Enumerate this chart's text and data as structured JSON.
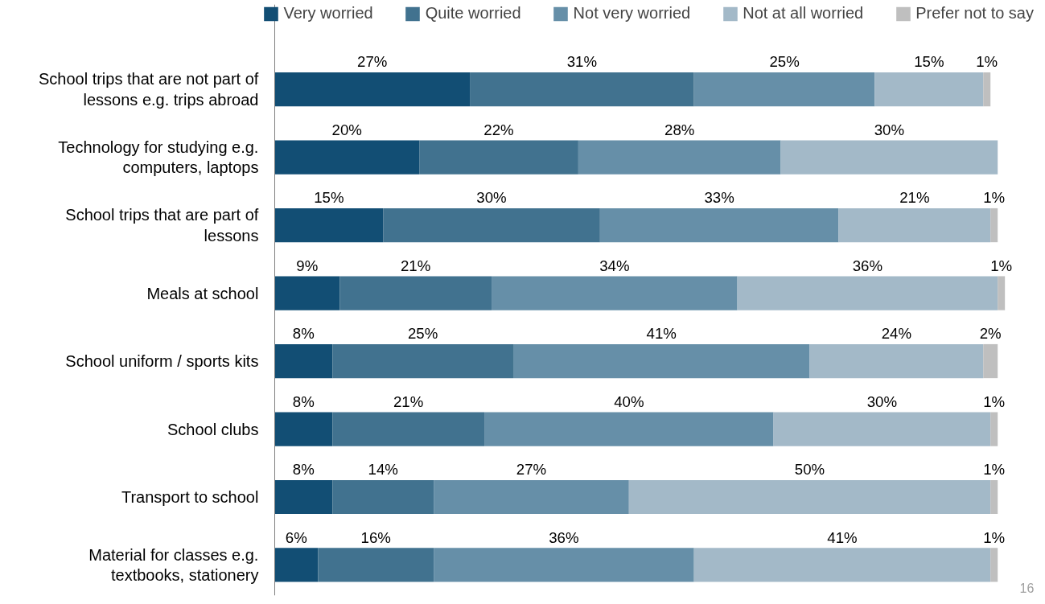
{
  "chart_data": {
    "type": "bar",
    "orientation": "horizontal",
    "stacked": true,
    "legend": "top",
    "grid": false,
    "categories": [
      "School trips that are not part of lessons e.g. trips abroad",
      "Technology for studying e.g. computers, laptops",
      "School trips that are part of lessons",
      "Meals at school",
      "School uniform / sports kits",
      "School clubs",
      "Transport to school",
      "Material for classes e.g. textbooks, stationery"
    ],
    "series": [
      {
        "name": "Very worried",
        "color": "#124e74",
        "values": [
          27,
          20,
          15,
          9,
          8,
          8,
          8,
          6
        ],
        "value_labels": [
          "27%",
          "20%",
          "15%",
          "9%",
          "8%",
          "8%",
          "8%",
          "6%"
        ]
      },
      {
        "name": "Quite worried",
        "color": "#41728f",
        "values": [
          31,
          22,
          30,
          21,
          25,
          21,
          14,
          16
        ],
        "value_labels": [
          "31%",
          "22%",
          "30%",
          "21%",
          "25%",
          "21%",
          "14%",
          "16%"
        ]
      },
      {
        "name": "Not very worried",
        "color": "#668fa8",
        "values": [
          25,
          28,
          33,
          34,
          41,
          40,
          27,
          36
        ],
        "value_labels": [
          "25%",
          "28%",
          "33%",
          "34%",
          "41%",
          "40%",
          "27%",
          "36%"
        ]
      },
      {
        "name": "Not at all worried",
        "color": "#a3b9c8",
        "values": [
          15,
          30,
          21,
          36,
          24,
          30,
          50,
          41
        ],
        "value_labels": [
          "15%",
          "30%",
          "21%",
          "36%",
          "24%",
          "30%",
          "50%",
          "41%"
        ]
      },
      {
        "name": "Prefer not to say",
        "color": "#bfbfbf",
        "values": [
          1,
          null,
          1,
          1,
          2,
          1,
          1,
          1
        ],
        "value_labels": [
          "1%",
          null,
          "1%",
          "1%",
          "2%",
          "1%",
          "1%",
          "1%"
        ]
      }
    ],
    "annotations": [
      "16"
    ]
  }
}
